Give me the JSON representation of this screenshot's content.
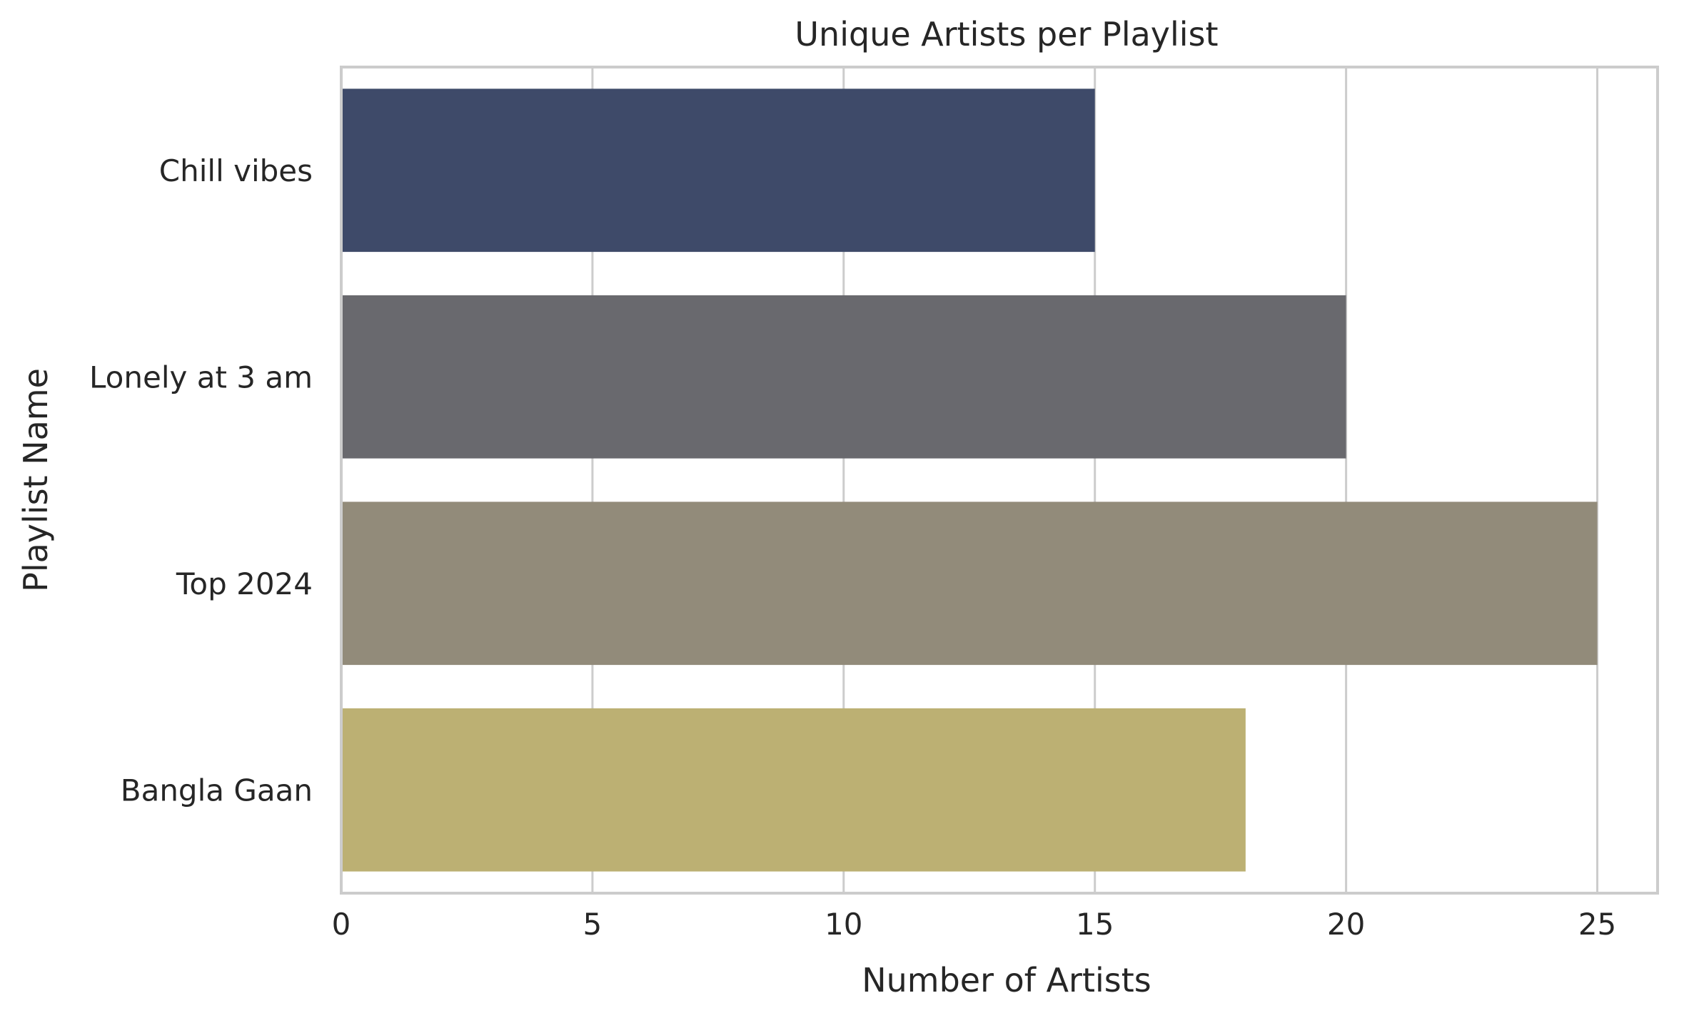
{
  "chart_data": {
    "type": "bar",
    "orientation": "horizontal",
    "title": "Unique Artists per Playlist",
    "xlabel": "Number of Artists",
    "ylabel": "Playlist Name",
    "categories": [
      "Chill vibes",
      "Lonely at 3 am",
      "Top 2024",
      "Bangla Gaan"
    ],
    "values": [
      15,
      20,
      25,
      18
    ],
    "colors": [
      "#3e4a69",
      "#69696e",
      "#928b7a",
      "#bcb073"
    ],
    "xlim": [
      0,
      26.2
    ],
    "xticks": [
      0,
      5,
      10,
      15,
      20,
      25
    ],
    "grid": true,
    "legend": "none"
  }
}
